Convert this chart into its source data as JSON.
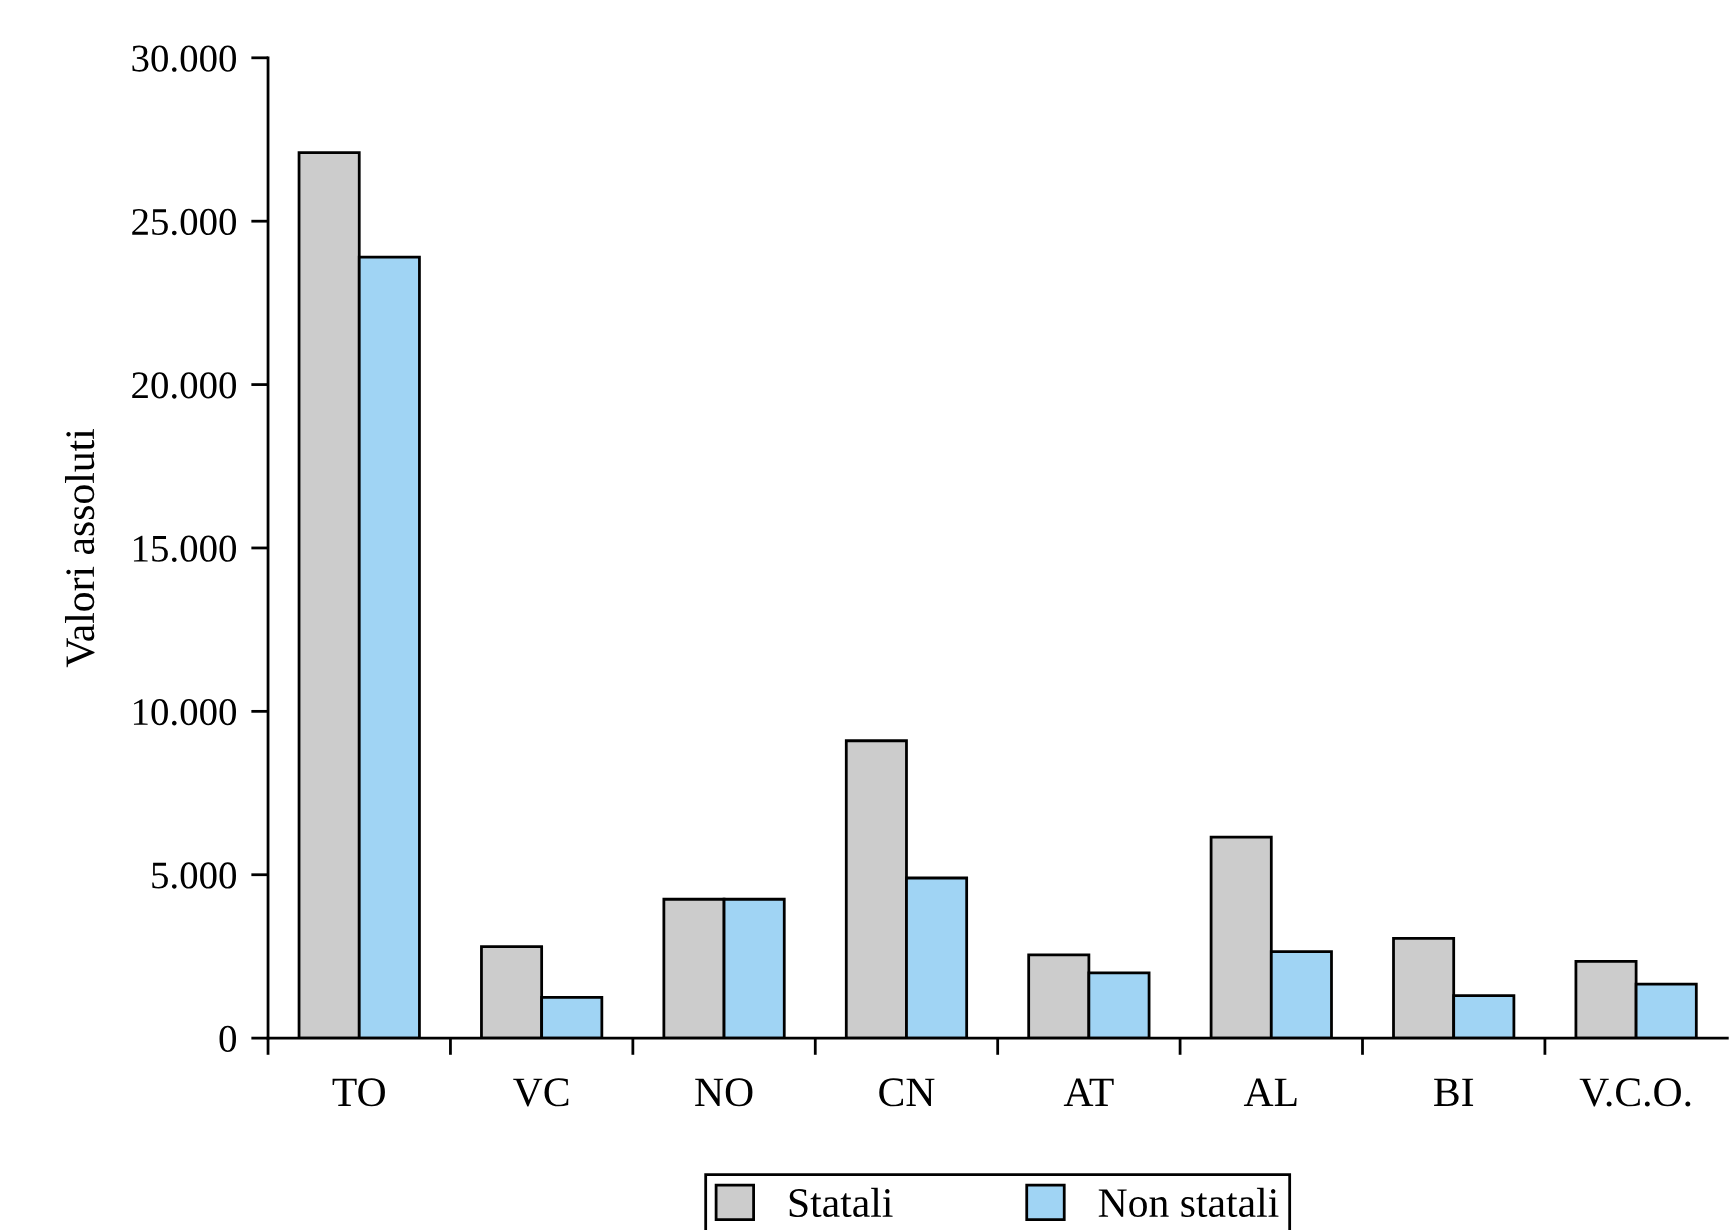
{
  "chart_data": {
    "type": "bar",
    "ylabel": "Valori assoluti",
    "categories": [
      "TO",
      "VC",
      "NO",
      "CN",
      "AT",
      "AL",
      "BI",
      "V.C.O."
    ],
    "series": [
      {
        "name": "Statali",
        "color": "#cccccc",
        "values": [
          27100,
          2800,
          4250,
          9100,
          2550,
          6150,
          3050,
          2350
        ]
      },
      {
        "name": "Non statali",
        "color": "#a0d4f4",
        "values": [
          23900,
          1250,
          4250,
          4900,
          2000,
          2650,
          1300,
          1650
        ]
      }
    ],
    "ylim": [
      0,
      30000
    ],
    "yticks": [
      0,
      {
        "value": 5000,
        "label": "5.000"
      },
      {
        "value": 10000,
        "label": "10.000"
      },
      {
        "value": 15000,
        "label": "15.000"
      },
      {
        "value": 20000,
        "label": "20.000"
      },
      {
        "value": 25000,
        "label": "25.000"
      },
      {
        "value": 30000,
        "label": "30.000"
      }
    ],
    "legend": "bottom"
  }
}
